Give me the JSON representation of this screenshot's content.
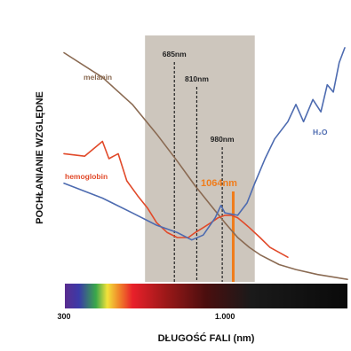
{
  "chart_data": {
    "type": "line",
    "title": "",
    "xlabel": "DŁUGOŚĆ FALI (nm)",
    "ylabel": "POCHŁANIANIE WZGLĘDNE",
    "xscale": "log",
    "xlim": [
      300,
      2500
    ],
    "ylim": [
      0,
      100
    ],
    "grid": false,
    "legend": "inline labels",
    "x_tick_labels": [
      {
        "x": 300,
        "label": "300"
      },
      {
        "x": 1000,
        "label": "1.000"
      }
    ],
    "highlight_band": {
      "from": 550,
      "to": 1250,
      "color": "#cdc6bd"
    },
    "markers": [
      {
        "x": 685,
        "label": "685nm",
        "style": "dashed",
        "color": "#222222"
      },
      {
        "x": 810,
        "label": "810nm",
        "style": "dashed",
        "color": "#222222"
      },
      {
        "x": 980,
        "label": "980nm",
        "style": "dashed",
        "color": "#222222"
      },
      {
        "x": 1064,
        "label": "1064nm",
        "style": "solid",
        "color": "#f07c1a"
      }
    ],
    "series": [
      {
        "name": "melanin",
        "color": "#8a6a52",
        "points": [
          [
            300,
            93
          ],
          [
            400,
            83
          ],
          [
            500,
            72
          ],
          [
            600,
            60
          ],
          [
            700,
            49
          ],
          [
            800,
            39
          ],
          [
            900,
            31
          ],
          [
            1000,
            24
          ],
          [
            1100,
            18
          ],
          [
            1200,
            14
          ],
          [
            1300,
            11
          ],
          [
            1500,
            7
          ],
          [
            1700,
            5
          ],
          [
            2000,
            3
          ],
          [
            2500,
            1
          ]
        ]
      },
      {
        "name": "hemoglobin",
        "color": "#e14a2a",
        "points": [
          [
            300,
            52
          ],
          [
            350,
            51
          ],
          [
            400,
            57
          ],
          [
            420,
            50
          ],
          [
            450,
            52
          ],
          [
            480,
            41
          ],
          [
            520,
            35
          ],
          [
            560,
            30
          ],
          [
            600,
            24
          ],
          [
            650,
            20
          ],
          [
            700,
            18
          ],
          [
            760,
            18
          ],
          [
            800,
            20
          ],
          [
            850,
            22
          ],
          [
            900,
            24
          ],
          [
            950,
            26
          ],
          [
            1000,
            27
          ],
          [
            1050,
            27
          ],
          [
            1100,
            26
          ],
          [
            1150,
            24
          ],
          [
            1200,
            22
          ],
          [
            1300,
            18
          ],
          [
            1400,
            14
          ],
          [
            1600,
            10
          ]
        ]
      },
      {
        "name": "H₂O",
        "color": "#4d6bb0",
        "points": [
          [
            300,
            40
          ],
          [
            400,
            34
          ],
          [
            500,
            28
          ],
          [
            600,
            23
          ],
          [
            700,
            20
          ],
          [
            780,
            17
          ],
          [
            850,
            19
          ],
          [
            930,
            26
          ],
          [
            970,
            31
          ],
          [
            1000,
            28
          ],
          [
            1100,
            27
          ],
          [
            1180,
            32
          ],
          [
            1250,
            40
          ],
          [
            1350,
            50
          ],
          [
            1450,
            58
          ],
          [
            1600,
            65
          ],
          [
            1700,
            72
          ],
          [
            1800,
            65
          ],
          [
            1930,
            74
          ],
          [
            2050,
            69
          ],
          [
            2150,
            80
          ],
          [
            2250,
            77
          ],
          [
            2350,
            89
          ],
          [
            2450,
            95
          ]
        ]
      }
    ]
  }
}
